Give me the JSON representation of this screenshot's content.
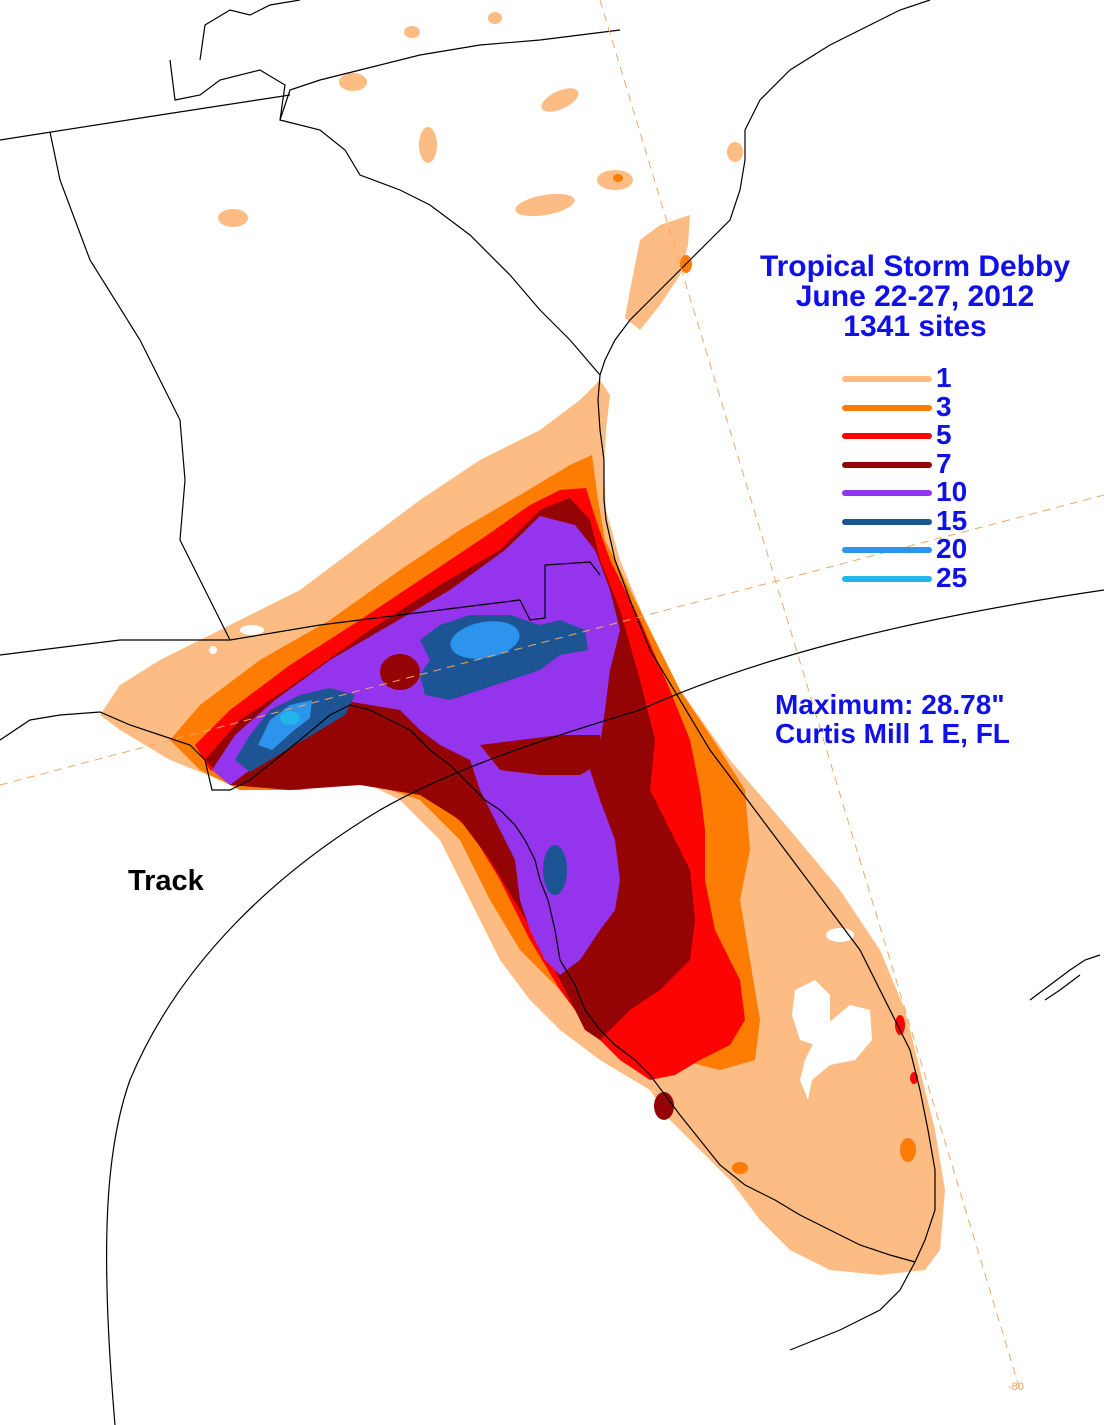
{
  "title": {
    "line1": "Tropical Storm  Debby",
    "line2": "June 22-27, 2012",
    "line3": "1341 sites"
  },
  "legend": [
    {
      "value": "1",
      "color": "#fcbc84"
    },
    {
      "value": "3",
      "color": "#fc7c04"
    },
    {
      "value": "5",
      "color": "#fc0404"
    },
    {
      "value": "7",
      "color": "#940404"
    },
    {
      "value": "10",
      "color": "#9434ec"
    },
    {
      "value": "15",
      "color": "#1c5494"
    },
    {
      "value": "20",
      "color": "#2c94ec"
    },
    {
      "value": "25",
      "color": "#24b4ec"
    }
  ],
  "maximum": {
    "label": "Maximum:  28.78\"",
    "location": "Curtis Mill 1 E, FL"
  },
  "track_label": "Track",
  "longitude_label": "-80",
  "colors": {
    "text_blue": "#1010e8",
    "gridline": "#f0a868",
    "boundary": "#000000"
  }
}
